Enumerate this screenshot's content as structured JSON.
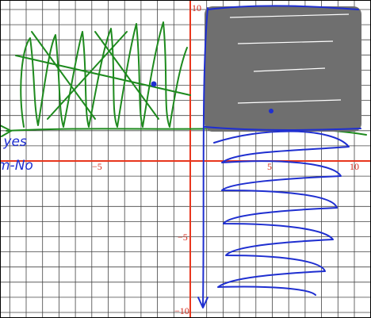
{
  "x_labels": [
    "−5",
    "5",
    "10"
  ],
  "y_labels": [
    "10",
    "−5",
    "−10"
  ],
  "handwriting": [
    "r yes",
    "m-No"
  ]
}
